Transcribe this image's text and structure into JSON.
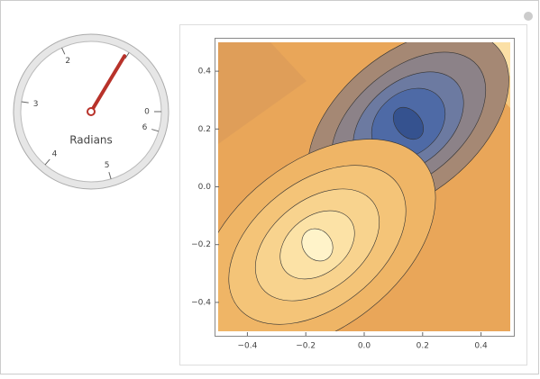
{
  "gauge": {
    "label": "Radians",
    "value": 1.03,
    "ticks": [
      0,
      1,
      2,
      3,
      4,
      5,
      6
    ],
    "tick_labels": [
      "0",
      null,
      "2",
      "3",
      "4",
      "5",
      "6"
    ]
  },
  "chart_data": {
    "type": "contour",
    "xlim": [
      -0.5,
      0.5
    ],
    "ylim": [
      -0.5,
      0.5
    ],
    "xticks": [
      {
        "value": -0.4,
        "label": "−0.4"
      },
      {
        "value": -0.2,
        "label": "−0.2"
      },
      {
        "value": 0,
        "label": "0.0"
      },
      {
        "value": 0.2,
        "label": "0.2"
      },
      {
        "value": 0.4,
        "label": "0.4"
      }
    ],
    "yticks": [
      {
        "value": -0.4,
        "label": "−0.4"
      },
      {
        "value": -0.2,
        "label": "−0.2"
      },
      {
        "value": 0,
        "label": "0.0"
      },
      {
        "value": 0.2,
        "label": "0.2"
      },
      {
        "value": 0.4,
        "label": "0.4"
      }
    ]
  }
}
